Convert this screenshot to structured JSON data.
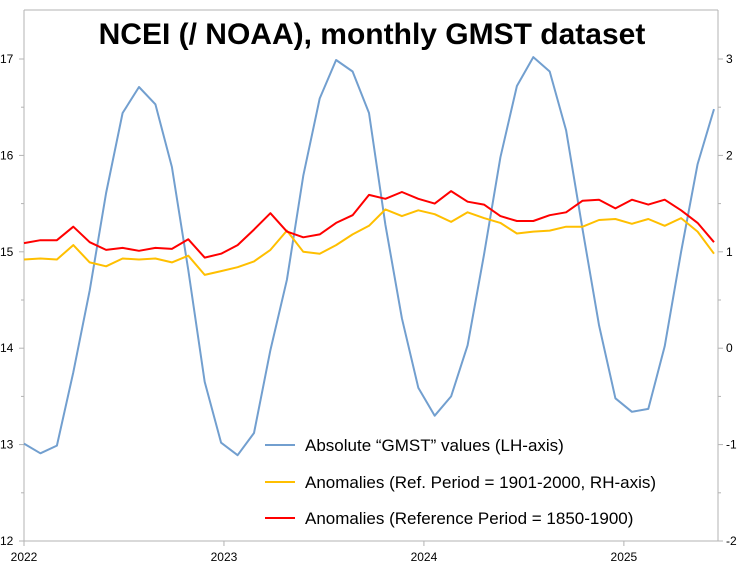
{
  "chart_data": {
    "type": "line",
    "title": "NCEI (/ NOAA), monthly GMST dataset",
    "x_start": {
      "year": 2022,
      "month": 1
    },
    "x_tick_labels": [
      "2022",
      "2023",
      "2024",
      "2025"
    ],
    "x_tick_years": [
      2022,
      2023,
      2024,
      2025
    ],
    "y_left": {
      "range": [
        12,
        17
      ],
      "ticks": [
        12,
        13,
        14,
        15,
        16,
        17
      ],
      "tick_labels": [
        "12",
        "13",
        "14",
        "15",
        "16",
        "17"
      ],
      "minor_step": 0.5
    },
    "y_right": {
      "range": [
        -2,
        3
      ],
      "ticks": [
        -2,
        -1,
        0,
        1,
        2,
        3
      ],
      "tick_labels": [
        "-2",
        "-1",
        "0",
        "1",
        "2",
        "3"
      ],
      "minor_step": 0.5
    },
    "grid": false,
    "legend_position": "bottom-right",
    "series": [
      {
        "name": "Absolute “GMST” values (LH-axis)",
        "axis": "left",
        "color": "#729fcf",
        "values": [
          13.01,
          12.91,
          12.99,
          13.75,
          14.6,
          15.61,
          16.44,
          16.71,
          16.53,
          15.88,
          14.81,
          13.65,
          13.02,
          12.89,
          13.12,
          13.98,
          14.71,
          15.79,
          16.59,
          16.99,
          16.87,
          16.44,
          15.28,
          14.31,
          13.59,
          13.3,
          13.5,
          14.03,
          14.97,
          15.98,
          16.72,
          17.02,
          16.87,
          16.26,
          15.23,
          14.24,
          13.48,
          13.34,
          13.37,
          14.02,
          15.0,
          15.91,
          16.48
        ]
      },
      {
        "name": "Anomalies (Ref. Period = 1901-2000, RH-axis)",
        "axis": "right",
        "color": "#ffbf00",
        "values": [
          0.92,
          0.93,
          0.92,
          1.07,
          0.89,
          0.85,
          0.93,
          0.92,
          0.93,
          0.89,
          0.96,
          0.76,
          0.8,
          0.84,
          0.9,
          1.02,
          1.22,
          1.0,
          0.98,
          1.07,
          1.18,
          1.27,
          1.44,
          1.37,
          1.43,
          1.39,
          1.31,
          1.41,
          1.35,
          1.3,
          1.19,
          1.21,
          1.22,
          1.26,
          1.26,
          1.33,
          1.34,
          1.29,
          1.34,
          1.27,
          1.35,
          1.21,
          0.98
        ]
      },
      {
        "name": "Anomalies (Reference Period = 1850-1900)",
        "axis": "right",
        "color": "#ff0000",
        "values": [
          1.09,
          1.12,
          1.12,
          1.26,
          1.1,
          1.02,
          1.04,
          1.01,
          1.04,
          1.03,
          1.13,
          0.94,
          0.98,
          1.07,
          1.23,
          1.4,
          1.21,
          1.15,
          1.18,
          1.3,
          1.38,
          1.59,
          1.55,
          1.62,
          1.55,
          1.5,
          1.63,
          1.52,
          1.49,
          1.37,
          1.32,
          1.32,
          1.38,
          1.41,
          1.53,
          1.54,
          1.45,
          1.54,
          1.49,
          1.54,
          1.43,
          1.3,
          1.1
        ]
      }
    ]
  }
}
